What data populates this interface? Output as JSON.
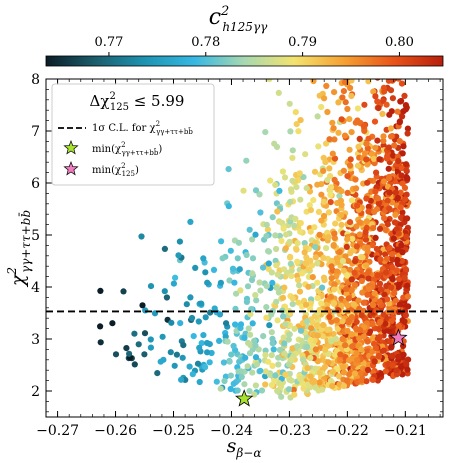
{
  "chart_data": {
    "type": "scatter",
    "colorbar": {
      "label": "c²_h125γγ",
      "label_main": "c",
      "label_sup": "2",
      "label_sub": "h125γγ",
      "range": [
        0.7635,
        0.8045
      ],
      "ticks": [
        0.77,
        0.78,
        0.79,
        0.8
      ],
      "tick_labels": [
        "0.77",
        "0.78",
        "0.79",
        "0.80"
      ],
      "colormap": [
        "#0b1d27",
        "#1b5e6d",
        "#1e94b2",
        "#38b8e2",
        "#a8d8b0",
        "#f3e36f",
        "#f5a133",
        "#e8541a",
        "#b81f0c"
      ]
    },
    "xlabel": "s_β−α",
    "xlabel_main": "s",
    "xlabel_sub": "β−α",
    "ylabel": "χ²_γγ+ττ+bb̄",
    "ylabel_main": "χ",
    "ylabel_sup": "2",
    "ylabel_sub": "γγ+ττ+bb̄",
    "xlim": [
      -0.272,
      -0.2035
    ],
    "ylim": [
      1.5,
      8.0
    ],
    "xticks": [
      -0.27,
      -0.26,
      -0.25,
      -0.24,
      -0.23,
      -0.22,
      -0.21
    ],
    "xtick_labels": [
      "−0.27",
      "−0.26",
      "−0.25",
      "−0.24",
      "−0.23",
      "−0.22",
      "−0.21"
    ],
    "yticks": [
      2,
      3,
      4,
      5,
      6,
      7,
      8
    ],
    "ytick_labels": [
      "2",
      "3",
      "4",
      "5",
      "6",
      "7",
      "8"
    ],
    "legend": {
      "title": "Δχ²₁₂₅ ≤ 5.99",
      "title_main": "Δχ",
      "title_sup": "2",
      "title_sub": "125",
      "title_rest": " ≤ 5.99",
      "placement": "top-left",
      "entries": [
        {
          "kind": "line",
          "label": "1σ C.L. for χ²_γγ+ττ+bb̄",
          "label_main": "1σ C.L. for  χ",
          "label_sup": "2",
          "label_sub": "γγ+ττ+bb̄"
        },
        {
          "kind": "star",
          "color": "#a6e22e",
          "label": "min(χ²_γγ+ττ+bb̄)",
          "label_main": "min(χ",
          "label_sup": "2",
          "label_sub": "γγ+ττ+bb̄",
          "label_end": ")"
        },
        {
          "kind": "star",
          "color": "#f07bbf",
          "label": "min(χ²_125)",
          "label_main": "min(χ",
          "label_sup": "2",
          "label_sub": "125",
          "label_end": ")"
        }
      ]
    },
    "hline": {
      "y": 3.53,
      "style": "dashed",
      "color": "#000000"
    },
    "best_fit_points": [
      {
        "name": "min(χ²_γγ+ττ+bb̄)",
        "x": -0.2378,
        "y": 1.85,
        "color": "#a6e22e"
      },
      {
        "name": "min(χ²_125)",
        "x": -0.2112,
        "y": 3.02,
        "color": "#f07bbf"
      }
    ],
    "scatter_description": "about 2000 parameter-space points, density increasing toward x = -0.21; color tracks x; chi-squared range 1.8–8.0",
    "scatter_points_count": 2000
  }
}
